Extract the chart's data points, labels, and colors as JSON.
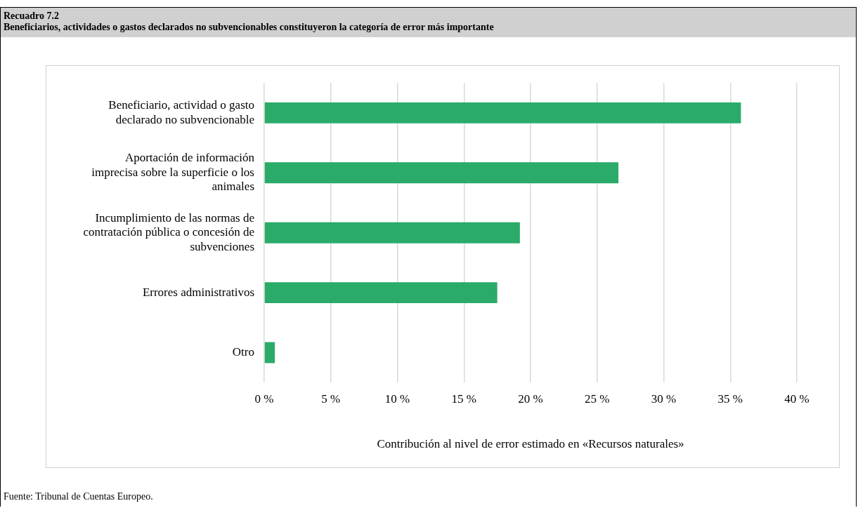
{
  "chart_data": {
    "type": "bar",
    "orientation": "horizontal",
    "title": "Recuadro 7.2",
    "subtitle": "Beneficiarios, actividades o gastos declarados no subvencionables constituyeron la categoría de error más importante",
    "categories": [
      "Beneficiario, actividad o gasto declarado no subvencionable",
      "Aportación de información imprecisa sobre la superficie o los animales",
      "Incumplimiento de las normas de contratación pública o concesión de subvenciones",
      "Errores administrativos",
      "Otro"
    ],
    "values": [
      35.8,
      26.6,
      19.2,
      17.5,
      0.8
    ],
    "color": "#2aab6a",
    "xlabel": "Contribución al nivel de error estimado en «Recursos naturales»",
    "xlim": [
      0,
      40
    ],
    "xticks": [
      {
        "value": 0,
        "label": "0 %"
      },
      {
        "value": 5,
        "label": "5 %"
      },
      {
        "value": 10,
        "label": "10 %"
      },
      {
        "value": 15,
        "label": "15 %"
      },
      {
        "value": 20,
        "label": "20 %"
      },
      {
        "value": 25,
        "label": "25 %"
      },
      {
        "value": 30,
        "label": "30 %"
      },
      {
        "value": 35,
        "label": "35 %"
      },
      {
        "value": 40,
        "label": "40 %"
      }
    ],
    "grid": "x",
    "annotations": [
      "Fuente: Tribunal de Cuentas Europeo."
    ]
  }
}
